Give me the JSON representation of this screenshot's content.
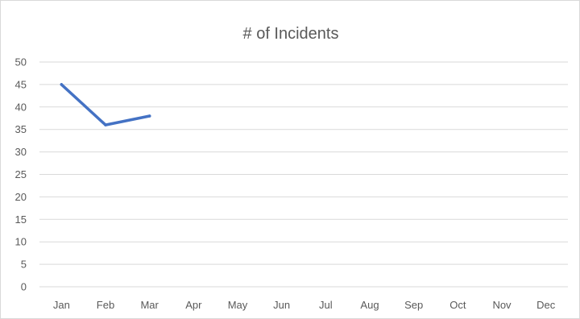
{
  "chart_data": {
    "type": "line",
    "title": "# of Incidents",
    "xlabel": "",
    "ylabel": "",
    "categories": [
      "Jan",
      "Feb",
      "Mar",
      "Apr",
      "May",
      "Jun",
      "Jul",
      "Aug",
      "Sep",
      "Oct",
      "Nov",
      "Dec"
    ],
    "series": [
      {
        "values": [
          45,
          36,
          38,
          null,
          null,
          null,
          null,
          null,
          null,
          null,
          null,
          null
        ]
      }
    ],
    "ylim": [
      0,
      50
    ],
    "y_ticks": [
      0,
      5,
      10,
      15,
      20,
      25,
      30,
      35,
      40,
      45,
      50
    ],
    "grid": true,
    "legend": "none",
    "colors": {
      "series": "#4472c4",
      "grid": "#d9d9d9",
      "text": "#595959"
    }
  }
}
